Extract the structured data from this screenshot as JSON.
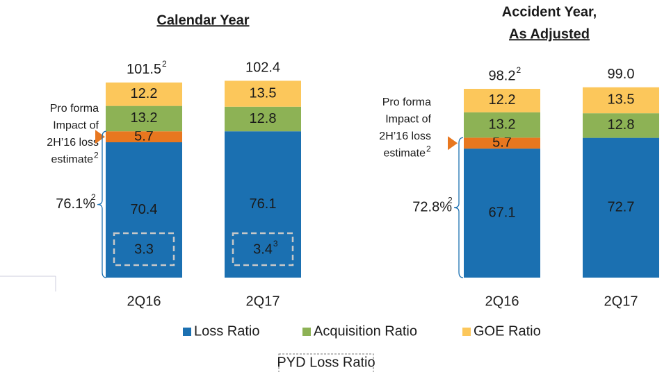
{
  "chart_data": [
    {
      "type": "stacked-bar",
      "title": "Calendar Year",
      "categories": [
        "2Q16",
        "2Q17"
      ],
      "series": [
        {
          "name": "Loss Ratio",
          "color": "#1b70b1",
          "values": [
            70.4,
            76.1
          ]
        },
        {
          "color": "#e8771f",
          "values": [
            5.7,
            null
          ]
        },
        {
          "name": "Acquisition Ratio",
          "color": "#8db255",
          "values": [
            13.2,
            12.8
          ]
        },
        {
          "name": "GOE Ratio",
          "color": "#fcc75b",
          "values": [
            12.2,
            13.5
          ]
        }
      ],
      "totals": [
        101.5,
        102.4
      ],
      "total_footnotes": [
        "2",
        null
      ],
      "pyd": {
        "name": "PYD Loss Ratio",
        "values": [
          3.3,
          3.4
        ],
        "footnotes": [
          null,
          "3"
        ]
      },
      "annotation_lines": [
        "Pro forma",
        "Impact of",
        "2H’16 loss",
        "estimate"
      ],
      "annotation_footnote": "2",
      "bracket": {
        "value": 76.1,
        "label": "76.1%",
        "footnote": "2"
      }
    },
    {
      "type": "stacked-bar",
      "title_lines": [
        "Accident Year,",
        "As Adjusted"
      ],
      "categories": [
        "2Q16",
        "2Q17"
      ],
      "series": [
        {
          "color": "#1b70b1",
          "values": [
            67.1,
            72.7
          ]
        },
        {
          "color": "#e8771f",
          "values": [
            5.7,
            null
          ]
        },
        {
          "color": "#8db255",
          "values": [
            13.2,
            12.8
          ]
        },
        {
          "color": "#fcc75b",
          "values": [
            12.2,
            13.5
          ]
        }
      ],
      "totals": [
        98.2,
        99.0
      ],
      "totals_labels": [
        "98.2",
        "99.0"
      ],
      "total_footnotes": [
        "2",
        null
      ],
      "annotation_lines": [
        "Pro forma",
        "Impact of",
        "2H’16 loss",
        "estimate"
      ],
      "annotation_footnote": "2",
      "bracket": {
        "value": 72.8,
        "label": "72.8%",
        "footnote": "2"
      }
    }
  ]
}
